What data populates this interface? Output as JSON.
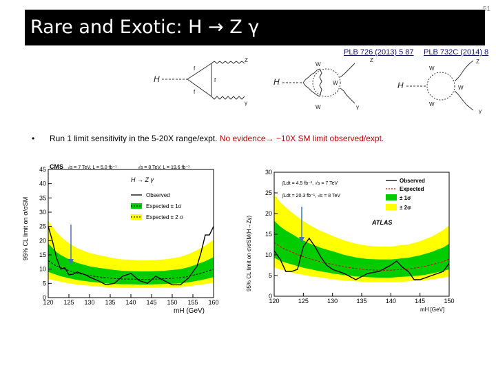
{
  "slide_number": "51",
  "title": "Rare and Exotic: H → Z γ",
  "refs": [
    "PLB 726 (2013) 5 87",
    "PLB 732C (2014) 8"
  ],
  "bullet": {
    "text": "Run 1 limit sensitivity in the 5-20X range/expt.",
    "highlight": "No evidence→ ~10X SM limit observed/expt."
  },
  "diagrams": [
    {
      "labels": [
        "H",
        "f",
        "f",
        "f",
        "Z",
        "γ"
      ]
    },
    {
      "labels": [
        "H",
        "W",
        "W",
        "W",
        "Z",
        "γ"
      ]
    },
    {
      "labels": [
        "H",
        "W",
        "W",
        "W",
        "Z",
        "γ"
      ]
    }
  ],
  "cms": {
    "header_left": "CMS",
    "header_7tev": "√s = 7 TeV, L = 5.0 fb⁻¹",
    "header_8tev": "√s = 8 TeV, L = 19.6 fb⁻¹",
    "channel": "H → Z γ",
    "legend": [
      "Observed",
      "Expected ± 1σ",
      "Expected ± 2 σ"
    ],
    "ylabel": "95% CL limit on σ/σSM",
    "xlabel": "mH (GeV)"
  },
  "atlas": {
    "lumi1": "∫Ldt = 4.5 fb⁻¹, √s = 7 TeV",
    "lumi2": "∫Ldt = 20.3 fb⁻¹, √s = 8 TeV",
    "legend": [
      "Observed",
      "Expected",
      "± 1σ",
      "± 2σ"
    ],
    "experiment": "ATLAS",
    "ylabel": "95% CL limit on σ/σSM(H→Zγ)",
    "xlabel": "mH [GeV]"
  },
  "chart_data": [
    {
      "type": "line",
      "title": "",
      "xlabel": "mH (GeV)",
      "ylabel": "95% CL limit on σ/σSM",
      "xlim": [
        120,
        160
      ],
      "ylim": [
        0,
        45
      ],
      "x": [
        120,
        121,
        122,
        123,
        124,
        125,
        126,
        127,
        128,
        129,
        130,
        132,
        134,
        136,
        138,
        140,
        142,
        144,
        146,
        148,
        150,
        152,
        154,
        156,
        157,
        158,
        159,
        160
      ],
      "series": [
        {
          "name": "Observed",
          "values": [
            25,
            20,
            14,
            10,
            10.5,
            8,
            8.2,
            9,
            8.5,
            8,
            7.2,
            6,
            4.5,
            5,
            7.5,
            8.5,
            6,
            5,
            7.5,
            6,
            4.5,
            4.5,
            7,
            11,
            16,
            22,
            22,
            25
          ]
        },
        {
          "name": "Expected",
          "values": [
            13,
            12,
            11,
            10.5,
            10,
            9.5,
            9,
            8.5,
            8.3,
            8,
            7.7,
            7.3,
            7,
            6.7,
            6.5,
            6.5,
            6.4,
            6.4,
            6.5,
            6.6,
            6.8,
            7,
            7.5,
            8.2,
            8.6,
            9,
            9.5,
            10
          ]
        }
      ],
      "band_1sigma": {
        "lo": [
          9,
          8.5,
          8,
          7.5,
          7.2,
          6.8,
          6.5,
          6.2,
          6,
          5.8,
          5.6,
          5.3,
          5,
          4.8,
          4.7,
          4.7,
          4.6,
          4.6,
          4.7,
          4.8,
          4.9,
          5,
          5.4,
          5.9,
          6.2,
          6.5,
          6.8,
          7.2
        ],
        "hi": [
          19,
          17.5,
          16,
          15,
          14.2,
          13.5,
          12.8,
          12.2,
          11.8,
          11.4,
          11,
          10.5,
          10.1,
          9.7,
          9.4,
          9.3,
          9.2,
          9.2,
          9.3,
          9.4,
          9.7,
          10,
          10.7,
          11.7,
          12.3,
          12.8,
          13.5,
          14.2
        ]
      },
      "band_2sigma": {
        "lo": [
          6.5,
          6.2,
          5.9,
          5.6,
          5.3,
          5,
          4.8,
          4.6,
          4.4,
          4.3,
          4.2,
          3.9,
          3.7,
          3.5,
          3.4,
          3.4,
          3.4,
          3.4,
          3.4,
          3.5,
          3.6,
          3.7,
          4,
          4.4,
          4.6,
          4.8,
          5,
          5.3
        ],
        "hi": [
          27,
          25,
          23,
          21.5,
          20.3,
          19.2,
          18.2,
          17.4,
          16.8,
          16.2,
          15.7,
          15,
          14.4,
          13.8,
          13.4,
          13.3,
          13.1,
          13.1,
          13.2,
          13.4,
          13.8,
          14.3,
          15.3,
          16.7,
          17.5,
          18.3,
          19.3,
          20.3
        ]
      }
    },
    {
      "type": "line",
      "title": "",
      "xlabel": "mH [GeV]",
      "ylabel": "95% CL limit on σ/σSM(H→Zγ)",
      "xlim": [
        120,
        150
      ],
      "ylim": [
        0,
        30
      ],
      "x": [
        120,
        121,
        122,
        123,
        124,
        125,
        126,
        127,
        128,
        129,
        130,
        132,
        134,
        136,
        138,
        140,
        141,
        142,
        143,
        144,
        145,
        146,
        147,
        148,
        149,
        150
      ],
      "series": [
        {
          "name": "Observed",
          "values": [
            11,
            9,
            6,
            6,
            6.5,
            12,
            14,
            12,
            9.5,
            7.5,
            6.5,
            5.5,
            4,
            5.5,
            6,
            7.5,
            8.5,
            7,
            6,
            4,
            4,
            4.5,
            5,
            5.5,
            6,
            8
          ]
        },
        {
          "name": "Expected",
          "values": [
            13,
            12,
            11.3,
            10.7,
            10.1,
            9.6,
            9.1,
            8.7,
            8.3,
            8,
            7.7,
            7.1,
            6.7,
            6.4,
            6.3,
            6.3,
            6.4,
            6.5,
            6.6,
            6.8,
            7,
            7.3,
            7.6,
            8,
            8.4,
            9
          ]
        }
      ],
      "band_1sigma": {
        "lo": [
          9.3,
          8.6,
          8.1,
          7.7,
          7.3,
          6.9,
          6.6,
          6.3,
          6,
          5.8,
          5.5,
          5.1,
          4.8,
          4.6,
          4.5,
          4.5,
          4.6,
          4.7,
          4.8,
          4.9,
          5,
          5.2,
          5.5,
          5.8,
          6.1,
          6.5
        ],
        "hi": [
          18.3,
          16.9,
          15.9,
          15.1,
          14.2,
          13.5,
          12.8,
          12.3,
          11.7,
          11.3,
          10.9,
          10,
          9.4,
          9,
          8.9,
          8.9,
          9,
          9.2,
          9.3,
          9.6,
          9.9,
          10.3,
          10.7,
          11.3,
          11.8,
          12.7
        ]
      },
      "band_2sigma": {
        "lo": [
          7,
          6.5,
          6.1,
          5.7,
          5.4,
          5.2,
          4.9,
          4.7,
          4.5,
          4.3,
          4.1,
          3.8,
          3.6,
          3.4,
          3.4,
          3.4,
          3.4,
          3.5,
          3.6,
          3.7,
          3.8,
          3.9,
          4.1,
          4.3,
          4.5,
          4.8
        ],
        "hi": [
          24.7,
          22.8,
          21.5,
          20.3,
          19.2,
          18.2,
          17.3,
          16.5,
          15.8,
          15.2,
          14.6,
          13.5,
          12.7,
          12.2,
          12,
          12,
          12.2,
          12.4,
          12.5,
          12.9,
          13.3,
          13.9,
          14.4,
          15.2,
          16,
          17.1
        ]
      }
    }
  ]
}
